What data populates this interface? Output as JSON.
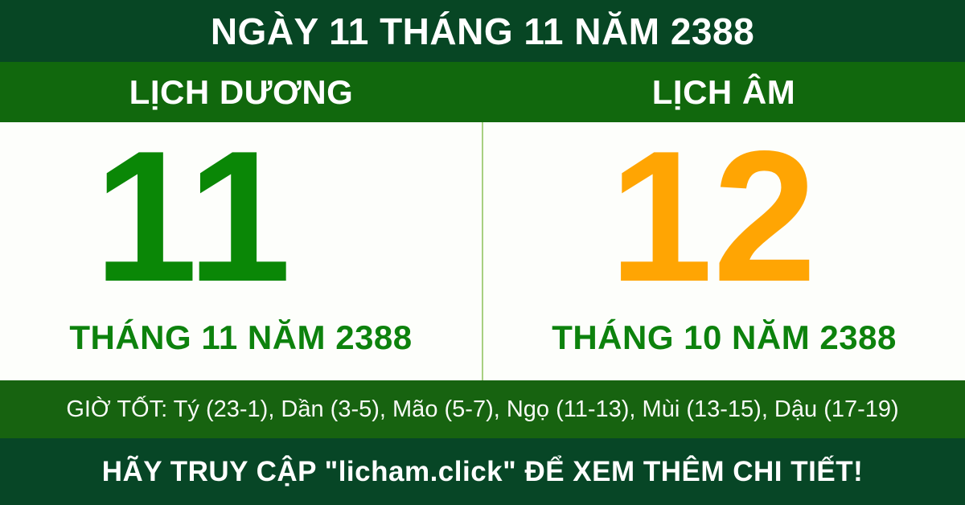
{
  "banner": {
    "title": "NGÀY 11 THÁNG 11 NĂM 2388"
  },
  "calendar": {
    "solar": {
      "header": "LỊCH DƯƠNG",
      "day": "11",
      "month_year": "THÁNG 11 NĂM 2388"
    },
    "lunar": {
      "header": "LỊCH ÂM",
      "day": "12",
      "month_year": "THÁNG 10 NĂM 2388"
    }
  },
  "good_hours": {
    "text": "GIỜ TỐT: Tý (23-1), Dần (3-5), Mão (5-7), Ngọ (11-13), Mùi (13-15), Dậu (17-19)"
  },
  "footer": {
    "text": "HÃY TRUY CẬP \"licham.click\" ĐỂ XEM THÊM CHI TIẾT!"
  },
  "colors": {
    "banner_bg": "#074624",
    "header_row_bg": "#11680d",
    "panel_bg": "#fdfefb",
    "divider": "#a8d082",
    "solar_day": "#0a8706",
    "lunar_day": "#ffa503",
    "month_label": "#0d820d",
    "hours_bar_bg": "#176310",
    "footer_bg": "#074626",
    "text_light": "#ffffff"
  }
}
